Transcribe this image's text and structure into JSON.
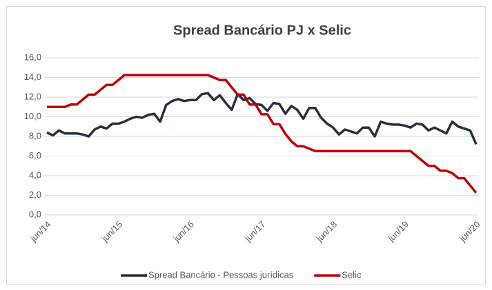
{
  "chart_data": {
    "type": "line",
    "title": "Spread Bancário PJ x Selic",
    "categories": [
      "jun/14",
      null,
      null,
      null,
      null,
      null,
      null,
      null,
      null,
      null,
      null,
      null,
      "jun/15",
      null,
      null,
      null,
      null,
      null,
      null,
      null,
      null,
      null,
      null,
      null,
      "jun/16",
      null,
      null,
      null,
      null,
      null,
      null,
      null,
      null,
      null,
      null,
      null,
      "jun/17",
      null,
      null,
      null,
      null,
      null,
      null,
      null,
      null,
      null,
      null,
      null,
      "jun/18",
      null,
      null,
      null,
      null,
      null,
      null,
      null,
      null,
      null,
      null,
      null,
      "jun/19",
      null,
      null,
      null,
      null,
      null,
      null,
      null,
      null,
      null,
      null,
      null,
      "jun/20"
    ],
    "series": [
      {
        "name": "Spread Bancário - Pessoas jurídicas",
        "color": "#262f3d",
        "values": [
          8.4,
          8.1,
          8.6,
          8.3,
          8.3,
          8.3,
          8.2,
          8.0,
          8.7,
          9.0,
          8.8,
          9.3,
          9.3,
          9.5,
          9.8,
          10.0,
          9.9,
          10.2,
          10.3,
          9.5,
          11.2,
          11.6,
          11.8,
          11.6,
          11.7,
          11.7,
          12.3,
          12.4,
          11.7,
          12.2,
          11.4,
          10.7,
          12.3,
          11.7,
          11.9,
          11.3,
          11.2,
          10.6,
          11.4,
          11.3,
          10.3,
          11.1,
          10.7,
          9.8,
          10.9,
          10.9,
          9.9,
          9.3,
          8.9,
          8.2,
          8.7,
          8.5,
          8.3,
          8.9,
          8.9,
          8.0,
          9.5,
          9.3,
          9.2,
          9.2,
          9.1,
          8.9,
          9.3,
          9.2,
          8.6,
          8.9,
          8.6,
          8.3,
          9.5,
          9.0,
          8.8,
          8.6,
          7.2
        ]
      },
      {
        "name": "Selic",
        "color": "#c00000",
        "values": [
          11,
          11,
          11,
          11,
          11.25,
          11.25,
          11.75,
          12.25,
          12.25,
          12.75,
          13.25,
          13.25,
          13.75,
          14.25,
          14.25,
          14.25,
          14.25,
          14.25,
          14.25,
          14.25,
          14.25,
          14.25,
          14.25,
          14.25,
          14.25,
          14.25,
          14.25,
          14.25,
          14.0,
          13.75,
          13.75,
          13.0,
          12.25,
          12.25,
          11.25,
          11.25,
          10.25,
          10.25,
          9.25,
          9.25,
          8.25,
          7.5,
          7.0,
          7.0,
          6.75,
          6.5,
          6.5,
          6.5,
          6.5,
          6.5,
          6.5,
          6.5,
          6.5,
          6.5,
          6.5,
          6.5,
          6.5,
          6.5,
          6.5,
          6.5,
          6.5,
          6.5,
          6.0,
          5.5,
          5.0,
          5.0,
          4.5,
          4.5,
          4.25,
          3.75,
          3.75,
          3.0,
          2.25
        ]
      }
    ],
    "ylim": [
      0,
      16
    ],
    "yticks": [
      {
        "value": 0,
        "label": "0,0"
      },
      {
        "value": 2,
        "label": "2,0"
      },
      {
        "value": 4,
        "label": "4,0"
      },
      {
        "value": 6,
        "label": "6,0"
      },
      {
        "value": 8,
        "label": "8,0"
      },
      {
        "value": 10,
        "label": "10,0"
      },
      {
        "value": 12,
        "label": "12,0"
      },
      {
        "value": 14,
        "label": "14,0"
      },
      {
        "value": 16,
        "label": "16,0"
      }
    ],
    "grid": true,
    "legend": "bottom"
  }
}
